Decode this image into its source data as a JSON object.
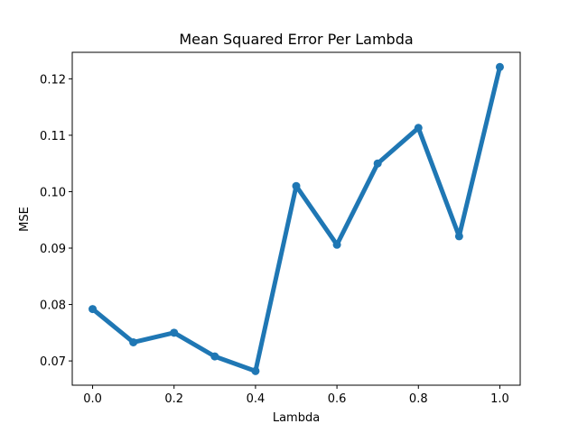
{
  "chart_data": {
    "type": "line",
    "title": "Mean Squared Error Per Lambda",
    "xlabel": "Lambda",
    "ylabel": "MSE",
    "xlim": [
      -0.05,
      1.05
    ],
    "ylim": [
      0.0657,
      0.1247
    ],
    "grid": false,
    "xticks": [
      0.0,
      0.2,
      0.4,
      0.6,
      0.8,
      1.0
    ],
    "xtick_labels": [
      "0.0",
      "0.2",
      "0.4",
      "0.6",
      "0.8",
      "1.0"
    ],
    "yticks": [
      0.07,
      0.08,
      0.09,
      0.1,
      0.11,
      0.12
    ],
    "ytick_labels": [
      "0.07",
      "0.08",
      "0.09",
      "0.10",
      "0.11",
      "0.12"
    ],
    "series": [
      {
        "color": "#1f77b4",
        "x": [
          0.0,
          0.1,
          0.2,
          0.3,
          0.4,
          0.5,
          0.6,
          0.7,
          0.8,
          0.9,
          1.0
        ],
        "y": [
          0.0792,
          0.0733,
          0.075,
          0.0708,
          0.0682,
          0.101,
          0.0906,
          0.105,
          0.1113,
          0.0921,
          0.1221
        ]
      }
    ]
  }
}
